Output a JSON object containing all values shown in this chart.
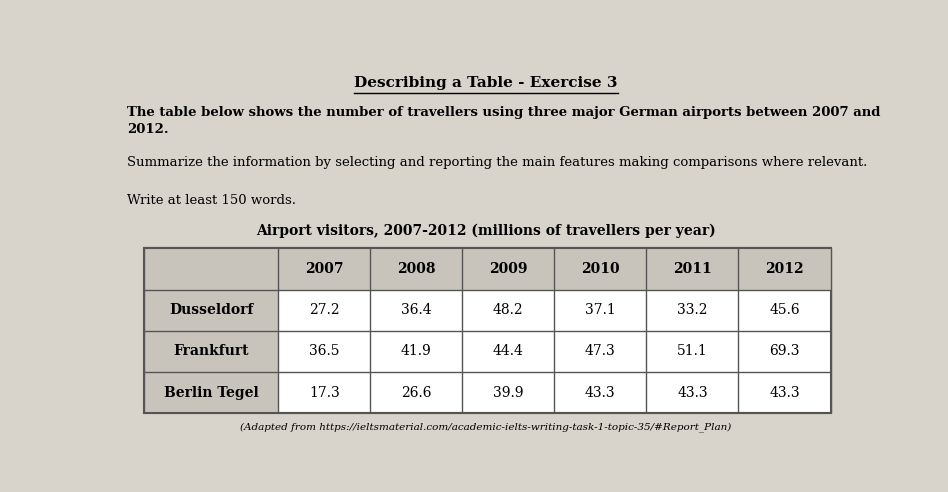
{
  "title": "Describing a Table - Exercise 3",
  "paragraph1_bold": "The table below shows the number of travellers using three major German airports between 2007 and\n2012.",
  "paragraph2": "Summarize the information by selecting and reporting the main features making comparisons where relevant.",
  "paragraph3": "Write at least 150 words.",
  "table_title": "Airport visitors, 2007-2012 (millions of travellers per year)",
  "columns": [
    "",
    "2007",
    "2008",
    "2009",
    "2010",
    "2011",
    "2012"
  ],
  "rows": [
    [
      "Dusseldorf",
      "27.2",
      "36.4",
      "48.2",
      "37.1",
      "33.2",
      "45.6"
    ],
    [
      "Frankfurt",
      "36.5",
      "41.9",
      "44.4",
      "47.3",
      "51.1",
      "69.3"
    ],
    [
      "Berlin Tegel",
      "17.3",
      "26.6",
      "39.9",
      "43.3",
      "43.3",
      "43.3"
    ]
  ],
  "footnote": "(Adapted from https://ieltsmaterial.com/academic-ielts-writing-task-1-topic-35/#Report_Plan)",
  "bg_color": "#d8d4cc",
  "header_bg": "#c8c4bc",
  "border_color": "#555555",
  "title_fontsize": 11,
  "body_fontsize": 9.5,
  "table_fontsize": 10
}
